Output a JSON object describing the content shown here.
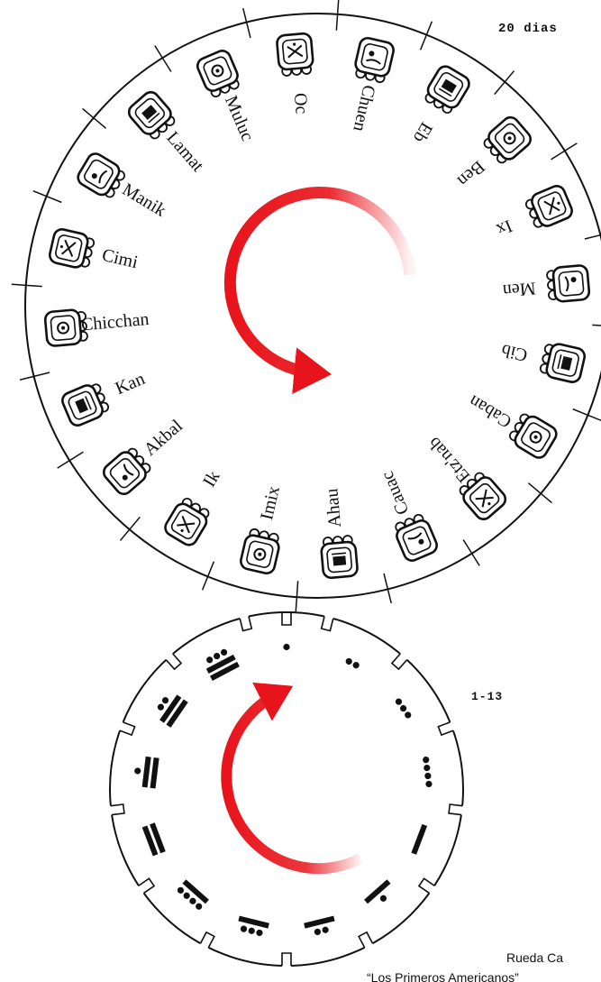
{
  "top_wheel": {
    "label": "20 dias",
    "day_names": [
      "Chuen",
      "Eb",
      "Ben",
      "Ix",
      "Men",
      "Cib",
      "Caban",
      "Etz'nab",
      "Cauac",
      "Ahau",
      "Imix",
      "Ik",
      "Akbal",
      "Kan",
      "Chicchan",
      "Cimi",
      "Manik",
      "Lamat",
      "Muluc",
      "Oc"
    ]
  },
  "bottom_wheel": {
    "label": "1-13",
    "numbers": [
      1,
      2,
      3,
      4,
      5,
      6,
      7,
      8,
      9,
      10,
      11,
      12,
      13
    ]
  },
  "caption": {
    "line1": "Rueda Ca",
    "line2": "“Los Primeros Americanos”"
  },
  "colors": {
    "arrow": "#e8141b",
    "ink": "#111111"
  }
}
